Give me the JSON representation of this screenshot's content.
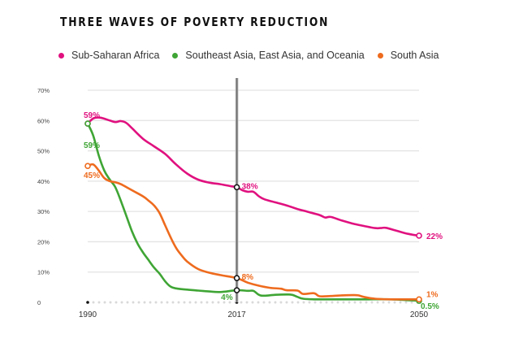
{
  "chart_data": {
    "type": "line",
    "title": "THREE WAVES OF POVERTY REDUCTION",
    "xlabel": "",
    "ylabel": "",
    "x_ticks": [
      "1990",
      "2017",
      "2050"
    ],
    "x_tick_values": [
      1990,
      2017,
      2050
    ],
    "y_ticks": [
      "0",
      "10%",
      "20%",
      "30%",
      "40%",
      "50%",
      "60%",
      "70%"
    ],
    "y_tick_values": [
      0,
      10,
      20,
      30,
      40,
      50,
      60,
      70
    ],
    "xlim": [
      1990,
      2050
    ],
    "ylim": [
      0,
      70
    ],
    "grid": true,
    "legend_position": "top-left",
    "highlight_year": 2017,
    "series": [
      {
        "name": "Sub-Saharan Africa",
        "color": "#e0117f",
        "x": [
          1990,
          1991,
          1992,
          1993,
          1994,
          1995,
          1996,
          1997,
          1998,
          2000,
          2002,
          2004,
          2006,
          2008,
          2010,
          2012,
          2014,
          2016,
          2017,
          2018,
          2019,
          2020,
          2021,
          2022,
          2024,
          2026,
          2028,
          2030,
          2032,
          2033,
          2034,
          2036,
          2038,
          2040,
          2042,
          2043,
          2044,
          2046,
          2048,
          2050
        ],
        "values": [
          59,
          60.7,
          61,
          60.6,
          60,
          59.5,
          59.8,
          59.2,
          57.5,
          54,
          51.5,
          49,
          45.5,
          42.5,
          40.5,
          39.5,
          39,
          38.3,
          38,
          37,
          36.5,
          36.5,
          35,
          34,
          33,
          32,
          30.8,
          29.8,
          28.8,
          28,
          28.2,
          27,
          26,
          25.2,
          24.5,
          24.5,
          24.6,
          23.6,
          22.6,
          22
        ]
      },
      {
        "name": "Southeast Asia, East Asia, and Oceania",
        "color": "#3fa535",
        "x": [
          1990,
          1991,
          1992,
          1993,
          1994,
          1995,
          1996,
          1997,
          1998,
          1999,
          2000,
          2001,
          2002,
          2003,
          2004,
          2005,
          2006,
          2008,
          2010,
          2012,
          2014,
          2017,
          2019,
          2020,
          2021,
          2022,
          2024,
          2026,
          2027,
          2028,
          2029,
          2031,
          2035,
          2040,
          2045,
          2050
        ],
        "values": [
          59,
          55,
          48.5,
          43.5,
          40.5,
          38,
          33.5,
          28.5,
          23.5,
          19.5,
          16.5,
          14,
          11.5,
          9.5,
          7,
          5.2,
          4.6,
          4.2,
          3.9,
          3.6,
          3.4,
          4,
          3.8,
          3.8,
          2.5,
          2.2,
          2.5,
          2.6,
          2.5,
          1.8,
          1.2,
          1,
          1,
          1,
          1,
          0.5
        ]
      },
      {
        "name": "South Asia",
        "color": "#ee6b1e",
        "x": [
          1990,
          1991,
          1992,
          1993,
          1994,
          1995,
          1996,
          1998,
          2000,
          2001,
          2002,
          2003,
          2004,
          2005,
          2006,
          2007,
          2008,
          2010,
          2012,
          2014,
          2017,
          2019,
          2021,
          2023,
          2025,
          2026,
          2028,
          2029,
          2031,
          2032,
          2034,
          2036,
          2038,
          2039,
          2040,
          2042,
          2045,
          2050
        ],
        "values": [
          45,
          45.5,
          43.5,
          41,
          40,
          39.6,
          39,
          37,
          35,
          33.6,
          32,
          29.5,
          25.5,
          21.5,
          18,
          15.5,
          13.5,
          11,
          9.8,
          9,
          8,
          6.5,
          5.5,
          4.8,
          4.5,
          4,
          3.9,
          2.8,
          3,
          2,
          2.1,
          2.3,
          2.4,
          2.3,
          1.8,
          1.2,
          1,
          1
        ]
      }
    ],
    "annotations": [
      {
        "series": "Sub-Saharan Africa",
        "x": 1990,
        "text": "59%",
        "placement": "above"
      },
      {
        "series": "Southeast Asia, East Asia, and Oceania",
        "x": 1990,
        "text": "59%",
        "placement": "below"
      },
      {
        "series": "South Asia",
        "x": 1990,
        "text": "45%",
        "placement": "below"
      },
      {
        "series": "Sub-Saharan Africa",
        "x": 2017,
        "text": "38%",
        "placement": "right"
      },
      {
        "series": "South Asia",
        "x": 2017,
        "text": "8%",
        "placement": "right"
      },
      {
        "series": "Southeast Asia, East Asia, and Oceania",
        "x": 2017,
        "text": "4%",
        "placement": "left"
      },
      {
        "series": "Sub-Saharan Africa",
        "x": 2050,
        "text": "22%",
        "placement": "right"
      },
      {
        "series": "South Asia",
        "x": 2050,
        "text": "1%",
        "placement": "right"
      },
      {
        "series": "Southeast Asia, East Asia, and Oceania",
        "x": 2050,
        "text": "0.5%",
        "placement": "right"
      }
    ]
  },
  "legend": {
    "items": [
      {
        "label": "Sub-Saharan Africa",
        "color": "#e0117f"
      },
      {
        "label": "Southeast Asia, East Asia, and Oceania",
        "color": "#3fa535"
      },
      {
        "label": "South Asia",
        "color": "#ee6b1e"
      }
    ]
  }
}
